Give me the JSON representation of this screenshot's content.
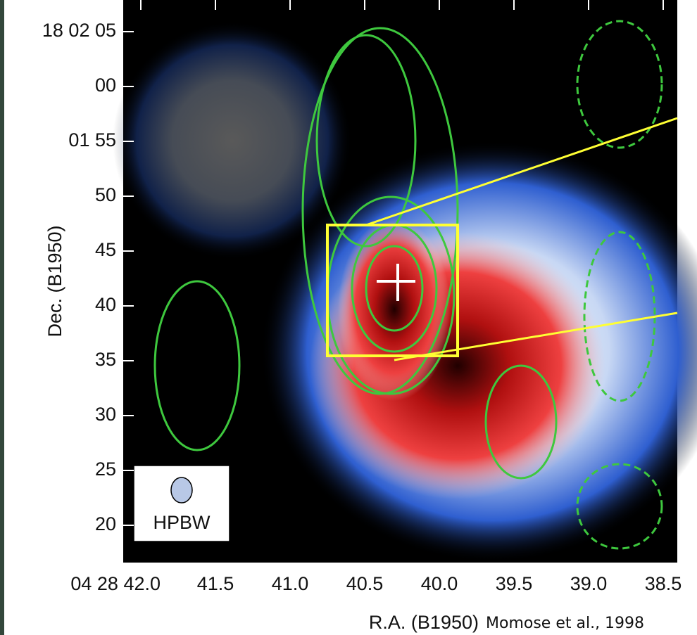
{
  "figure": {
    "y_label": "Dec. (B1950)",
    "y_ticks": [
      "18 02 05",
      "00",
      "01 55",
      "50",
      "45",
      "40",
      "35",
      "30",
      "25",
      "20"
    ],
    "x_label": "R.A. (B1950)",
    "x_ticks": [
      "04 28 42.0",
      "41.5",
      "41.0",
      "40.5",
      "40.0",
      "39.5",
      "39.0",
      "38.5"
    ],
    "beam_label": "HPBW",
    "credit": "Momose et al., 1998"
  }
}
